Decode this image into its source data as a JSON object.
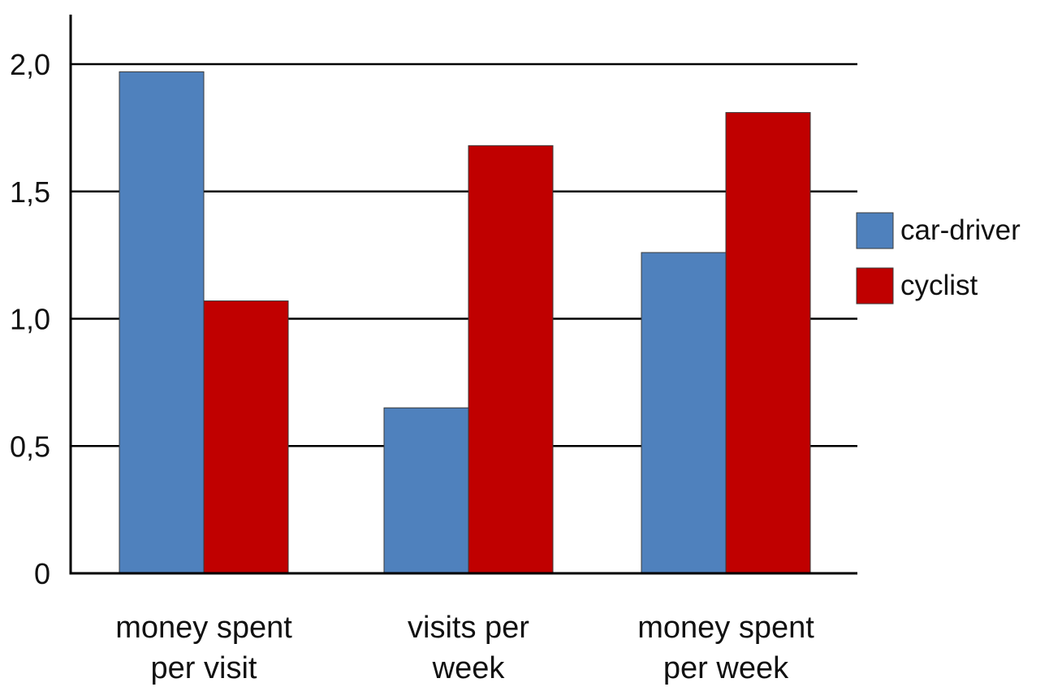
{
  "chart_data": {
    "type": "bar",
    "categories": [
      [
        "money spent",
        "per visit"
      ],
      [
        "visits per",
        "week"
      ],
      [
        "money spent",
        "per week"
      ]
    ],
    "series": [
      {
        "name": "car-driver",
        "color": "#4f81bd",
        "values": [
          1.97,
          0.65,
          1.26
        ]
      },
      {
        "name": "cyclist",
        "color": "#c00000",
        "values": [
          1.07,
          1.68,
          1.81
        ]
      }
    ],
    "ylim": [
      0,
      2.2
    ],
    "yticks": [
      {
        "value": 0,
        "label": "0"
      },
      {
        "value": 0.5,
        "label": "0,5"
      },
      {
        "value": 1.0,
        "label": "1,0"
      },
      {
        "value": 1.5,
        "label": "1,5"
      },
      {
        "value": 2.0,
        "label": "2,0"
      }
    ],
    "grid": true,
    "legend_position": "right",
    "title": "",
    "xlabel": "",
    "ylabel": ""
  }
}
